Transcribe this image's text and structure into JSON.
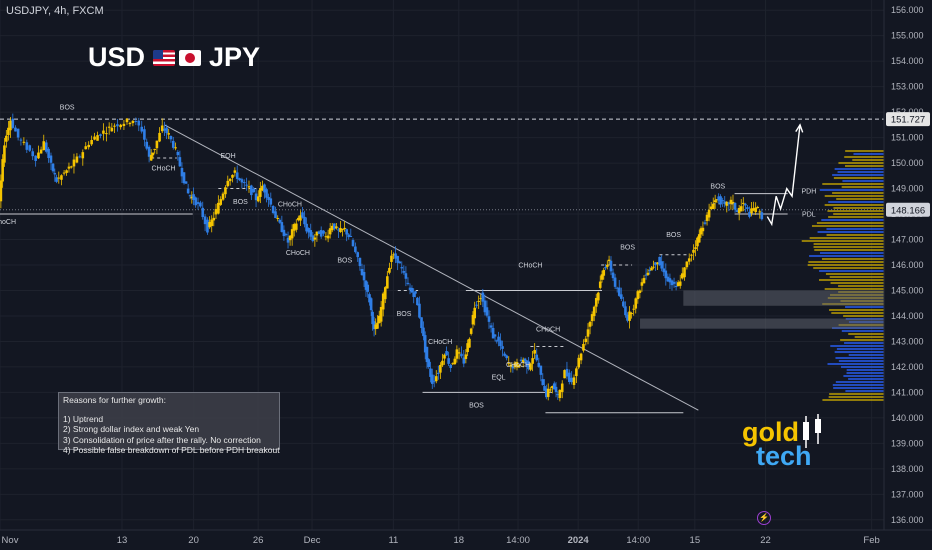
{
  "header": {
    "symbol_info": "USDJPY, 4h, FXCM",
    "pair_left": "USD",
    "pair_right": "JPY"
  },
  "reasons": {
    "title": "Reasons for further growth:",
    "items": [
      "1) Uptrend",
      "2) Strong dollar index and weak Yen",
      "3) Consolidation of price after the rally. No correction",
      "4) Possible false breakdown of PDL before PDH breakout"
    ]
  },
  "logo": {
    "line1": "gold",
    "line2": "tech"
  },
  "colors": {
    "background": "#131722",
    "up_candle": "#f5c400",
    "down_candle": "#2f7ee6",
    "current_price": "#ffffff",
    "highlight_zone": "#5d606b",
    "volume_profile_yellow": "#c9a800",
    "volume_profile_blue": "#2962ff"
  },
  "icons": [
    "flag-us-icon",
    "flag-jp-icon",
    "bolt-icon"
  ],
  "chart_data": {
    "type": "candlestick",
    "title": "USDJPY, 4h, FXCM",
    "ylim": [
      135.6,
      156.4
    ],
    "price_ticks": [
      "156.000",
      "155.000",
      "154.000",
      "153.000",
      "152.000",
      "151.000",
      "150.000",
      "149.000",
      "148.000",
      "147.000",
      "146.000",
      "145.000",
      "144.000",
      "143.000",
      "142.000",
      "141.000",
      "140.000",
      "139.000",
      "138.000",
      "137.000",
      "136.000"
    ],
    "time_ticks": [
      {
        "label": "Nov",
        "pos": 0.0
      },
      {
        "label": "13",
        "pos": 0.138
      },
      {
        "label": "20",
        "pos": 0.219
      },
      {
        "label": "26",
        "pos": 0.292
      },
      {
        "label": "Dec",
        "pos": 0.353
      },
      {
        "label": "11",
        "pos": 0.445
      },
      {
        "label": "18",
        "pos": 0.519
      },
      {
        "label": "14:00",
        "pos": 0.586
      },
      {
        "label": "2024",
        "pos": 0.654
      },
      {
        "label": "14:00",
        "pos": 0.722
      },
      {
        "label": "15",
        "pos": 0.786
      },
      {
        "label": "22",
        "pos": 0.866
      },
      {
        "label": "Feb",
        "pos": 0.986
      }
    ],
    "price_path": [
      [
        0.0,
        148.5
      ],
      [
        0.006,
        150.8
      ],
      [
        0.013,
        151.7
      ],
      [
        0.022,
        151.0
      ],
      [
        0.032,
        150.6
      ],
      [
        0.042,
        150.2
      ],
      [
        0.051,
        150.8
      ],
      [
        0.059,
        149.9
      ],
      [
        0.065,
        149.3
      ],
      [
        0.074,
        149.6
      ],
      [
        0.082,
        149.9
      ],
      [
        0.092,
        150.3
      ],
      [
        0.102,
        150.8
      ],
      [
        0.112,
        151.1
      ],
      [
        0.122,
        151.3
      ],
      [
        0.131,
        151.5
      ],
      [
        0.142,
        151.6
      ],
      [
        0.152,
        151.7
      ],
      [
        0.162,
        151.3
      ],
      [
        0.17,
        150.2
      ],
      [
        0.176,
        150.6
      ],
      [
        0.185,
        151.4
      ],
      [
        0.192,
        151.1
      ],
      [
        0.2,
        150.5
      ],
      [
        0.207,
        149.6
      ],
      [
        0.214,
        148.8
      ],
      [
        0.22,
        148.6
      ],
      [
        0.228,
        148.2
      ],
      [
        0.236,
        147.4
      ],
      [
        0.243,
        147.9
      ],
      [
        0.251,
        148.6
      ],
      [
        0.259,
        149.4
      ],
      [
        0.267,
        149.6
      ],
      [
        0.275,
        149.2
      ],
      [
        0.283,
        149.0
      ],
      [
        0.291,
        148.6
      ],
      [
        0.298,
        149.1
      ],
      [
        0.305,
        148.6
      ],
      [
        0.313,
        147.9
      ],
      [
        0.32,
        147.4
      ],
      [
        0.327,
        146.9
      ],
      [
        0.334,
        147.5
      ],
      [
        0.341,
        148.0
      ],
      [
        0.348,
        147.4
      ],
      [
        0.355,
        147.0
      ],
      [
        0.362,
        147.3
      ],
      [
        0.37,
        147.1
      ],
      [
        0.377,
        147.6
      ],
      [
        0.384,
        147.3
      ],
      [
        0.391,
        147.4
      ],
      [
        0.398,
        147.0
      ],
      [
        0.406,
        146.2
      ],
      [
        0.413,
        145.4
      ],
      [
        0.419,
        144.6
      ],
      [
        0.424,
        143.4
      ],
      [
        0.43,
        143.9
      ],
      [
        0.437,
        145.2
      ],
      [
        0.444,
        146.4
      ],
      [
        0.451,
        146.2
      ],
      [
        0.458,
        145.6
      ],
      [
        0.465,
        145.0
      ],
      [
        0.471,
        144.8
      ],
      [
        0.478,
        143.6
      ],
      [
        0.484,
        142.2
      ],
      [
        0.49,
        141.4
      ],
      [
        0.497,
        141.8
      ],
      [
        0.504,
        142.6
      ],
      [
        0.511,
        142.0
      ],
      [
        0.518,
        142.6
      ],
      [
        0.526,
        142.2
      ],
      [
        0.532,
        143.2
      ],
      [
        0.538,
        144.4
      ],
      [
        0.545,
        144.8
      ],
      [
        0.552,
        144.0
      ],
      [
        0.559,
        143.2
      ],
      [
        0.565,
        143.0
      ],
      [
        0.572,
        142.4
      ],
      [
        0.579,
        142.0
      ],
      [
        0.586,
        142.1
      ],
      [
        0.593,
        142.3
      ],
      [
        0.599,
        142.0
      ],
      [
        0.606,
        142.6
      ],
      [
        0.613,
        141.6
      ],
      [
        0.619,
        140.9
      ],
      [
        0.626,
        141.3
      ],
      [
        0.632,
        140.8
      ],
      [
        0.64,
        141.8
      ],
      [
        0.648,
        141.4
      ],
      [
        0.656,
        142.3
      ],
      [
        0.664,
        143.2
      ],
      [
        0.671,
        144.1
      ],
      [
        0.678,
        145.0
      ],
      [
        0.684,
        145.9
      ],
      [
        0.69,
        146.1
      ],
      [
        0.697,
        145.2
      ],
      [
        0.704,
        144.6
      ],
      [
        0.711,
        143.9
      ],
      [
        0.718,
        144.4
      ],
      [
        0.725,
        145.1
      ],
      [
        0.732,
        145.7
      ],
      [
        0.738,
        145.9
      ],
      [
        0.745,
        146.2
      ],
      [
        0.752,
        145.7
      ],
      [
        0.759,
        145.3
      ],
      [
        0.766,
        145.1
      ],
      [
        0.773,
        145.6
      ],
      [
        0.781,
        146.3
      ],
      [
        0.788,
        146.8
      ],
      [
        0.794,
        147.4
      ],
      [
        0.801,
        147.9
      ],
      [
        0.808,
        148.5
      ],
      [
        0.814,
        148.6
      ],
      [
        0.821,
        148.3
      ],
      [
        0.828,
        148.5
      ],
      [
        0.835,
        148.1
      ],
      [
        0.842,
        148.4
      ],
      [
        0.849,
        148.0
      ],
      [
        0.856,
        148.3
      ],
      [
        0.863,
        147.9
      ]
    ],
    "projection": [
      [
        0.868,
        147.9
      ],
      [
        0.873,
        147.6
      ],
      [
        0.878,
        148.7
      ],
      [
        0.883,
        148.2
      ],
      [
        0.89,
        149.0
      ],
      [
        0.896,
        148.7
      ],
      [
        0.905,
        151.5
      ]
    ],
    "current_price": 148.166,
    "level_price": 151.727,
    "trendline": [
      [
        0.186,
        151.5
      ],
      [
        0.79,
        140.3
      ]
    ],
    "zones": [
      {
        "x_start": 0.773,
        "x_end": 1.0,
        "top": 145.0,
        "bottom": 144.4
      },
      {
        "x_start": 0.724,
        "x_end": 1.0,
        "top": 143.9,
        "bottom": 143.5
      }
    ],
    "levels": [
      {
        "price": 148.0,
        "x_start": 0.0,
        "x_end": 0.218,
        "style": "solid"
      },
      {
        "price": 145.0,
        "x_start": 0.527,
        "x_end": 0.681,
        "style": "solid"
      },
      {
        "price": 141.0,
        "x_start": 0.478,
        "x_end": 0.625,
        "style": "solid"
      },
      {
        "price": 140.2,
        "x_start": 0.617,
        "x_end": 0.773,
        "style": "solid"
      },
      {
        "price": 148.8,
        "x_start": 0.831,
        "x_end": 0.891,
        "style": "solid"
      },
      {
        "price": 148.0,
        "x_start": 0.831,
        "x_end": 0.891,
        "style": "solid"
      },
      {
        "price": 146.0,
        "x_start": 0.68,
        "x_end": 0.715,
        "style": "dashed"
      },
      {
        "price": 146.4,
        "x_start": 0.746,
        "x_end": 0.78,
        "style": "dashed"
      },
      {
        "price": 142.8,
        "x_start": 0.6,
        "x_end": 0.64,
        "style": "dashed"
      },
      {
        "price": 148.4,
        "x_start": 0.806,
        "x_end": 0.832,
        "style": "dashed"
      },
      {
        "price": 149.0,
        "x_start": 0.247,
        "x_end": 0.29,
        "style": "dashed"
      },
      {
        "price": 150.2,
        "x_start": 0.171,
        "x_end": 0.2,
        "style": "dashed"
      },
      {
        "price": 145.0,
        "x_start": 0.45,
        "x_end": 0.473,
        "style": "dashed"
      }
    ],
    "annotations": [
      {
        "text": "BOS",
        "x": 0.076,
        "y": 152.1
      },
      {
        "text": "CHoCH",
        "x": 0.185,
        "y": 149.7
      },
      {
        "text": "EQH",
        "x": 0.258,
        "y": 150.2
      },
      {
        "text": "BOS",
        "x": 0.272,
        "y": 148.4
      },
      {
        "text": "CHoCH",
        "x": 0.328,
        "y": 148.3
      },
      {
        "text": "CHoCH",
        "x": 0.337,
        "y": 146.4
      },
      {
        "text": "BOS",
        "x": 0.39,
        "y": 146.1
      },
      {
        "text": "BOS",
        "x": 0.457,
        "y": 144.0
      },
      {
        "text": "CHoCH",
        "x": 0.498,
        "y": 142.9
      },
      {
        "text": "CHoCH",
        "x": 0.6,
        "y": 145.9
      },
      {
        "text": "CHoCH",
        "x": 0.62,
        "y": 143.4
      },
      {
        "text": "CHoCH",
        "x": 0.586,
        "y": 142.0
      },
      {
        "text": "EQL",
        "x": 0.564,
        "y": 141.5
      },
      {
        "text": "BOS",
        "x": 0.539,
        "y": 140.4
      },
      {
        "text": "BOS",
        "x": 0.71,
        "y": 146.6
      },
      {
        "text": "BOS",
        "x": 0.762,
        "y": 147.1
      },
      {
        "text": "BOS",
        "x": 0.812,
        "y": 149.0
      },
      {
        "text": "PDH",
        "x": 0.915,
        "y": 148.8
      },
      {
        "text": "PDL",
        "x": 0.915,
        "y": 147.9
      },
      {
        "text": "hoCH",
        "x": 0.008,
        "y": 147.6
      }
    ]
  }
}
